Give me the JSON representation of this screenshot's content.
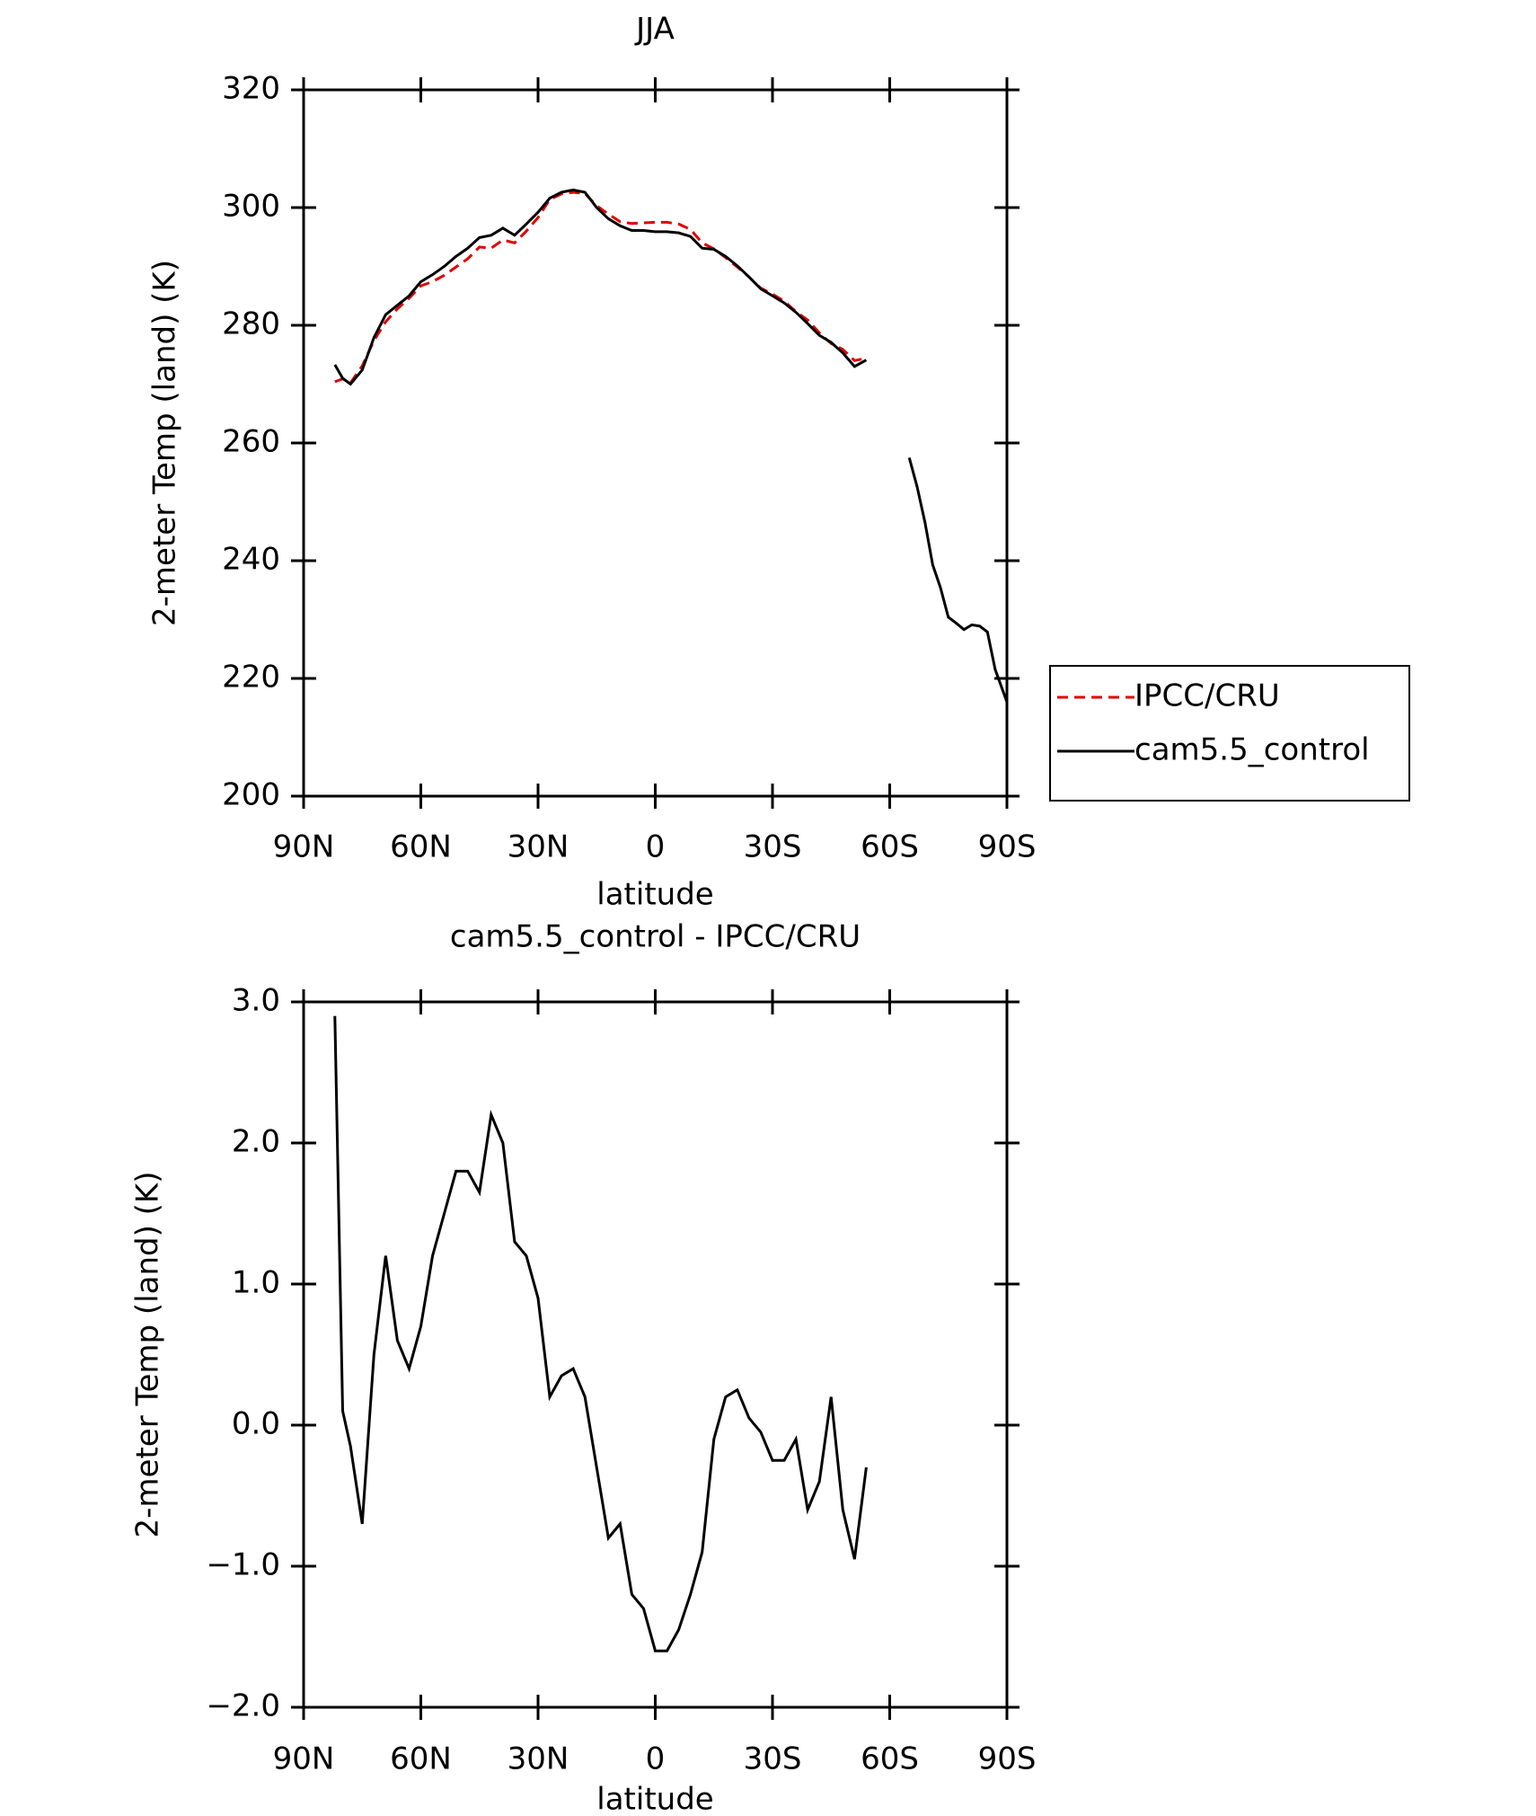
{
  "chart_data": [
    {
      "type": "line",
      "title": "JJA",
      "x_label": "latitude",
      "y_label": "2-meter Temp (land) (K)",
      "x": [
        82,
        80,
        78,
        75,
        72,
        69,
        66,
        63,
        60,
        57,
        54,
        51,
        48,
        45,
        42,
        39,
        36,
        33,
        30,
        27,
        24,
        21,
        18,
        15,
        12,
        9,
        6,
        3,
        0,
        -3,
        -6,
        -9,
        -12,
        -15,
        -18,
        -21,
        -24,
        -27,
        -30,
        -33,
        -36,
        -39,
        -42,
        -45,
        -48,
        -51,
        -54,
        -60,
        -65,
        -67,
        -69,
        -71,
        -73,
        -75,
        -77,
        -79,
        -81,
        -83,
        -85,
        -87,
        -90
      ],
      "xlim": [
        90,
        -90
      ],
      "xticks": [
        {
          "value": 90,
          "label": "90N"
        },
        {
          "value": 60,
          "label": "60N"
        },
        {
          "value": 30,
          "label": "30N"
        },
        0,
        {
          "value": -30,
          "label": "30S"
        },
        {
          "value": -60,
          "label": "60S"
        },
        {
          "value": -90,
          "label": "90S"
        }
      ],
      "ylim": [
        200,
        320
      ],
      "yticks": [
        200,
        220,
        240,
        260,
        280,
        300,
        320
      ],
      "legend": "right",
      "series": [
        {
          "name": "IPCC/CRU",
          "color": "#e00000",
          "dash": true,
          "values": [
            270.4,
            270.9,
            270.2,
            273.1,
            277.4,
            280.6,
            282.8,
            284.6,
            286.7,
            287.4,
            288.5,
            289.9,
            291.3,
            293.3,
            293.1,
            294.5,
            294.0,
            296.0,
            298.3,
            301.4,
            302.3,
            302.6,
            302.4,
            300.3,
            298.9,
            297.6,
            297.3,
            297.4,
            297.5,
            297.5,
            297.2,
            296.3,
            294.0,
            293.0,
            291.5,
            289.9,
            288.2,
            286.3,
            285.3,
            284.1,
            282.3,
            280.9,
            278.7,
            276.9,
            275.9,
            274.0,
            274.4,
            null,
            null,
            null,
            null,
            null,
            null,
            null,
            null,
            null,
            null,
            null,
            null,
            null,
            null
          ]
        },
        {
          "name": "cam5.5_control",
          "color": "#000000",
          "dash": false,
          "values": [
            273.3,
            271.0,
            270.0,
            272.4,
            277.9,
            281.8,
            283.4,
            285.0,
            287.4,
            288.6,
            290.0,
            291.7,
            293.1,
            294.9,
            295.3,
            296.5,
            295.3,
            297.2,
            299.2,
            301.6,
            302.6,
            303.0,
            302.6,
            300.0,
            298.1,
            296.9,
            296.1,
            296.1,
            295.9,
            295.9,
            295.7,
            295.1,
            293.1,
            292.9,
            291.7,
            290.1,
            288.2,
            286.2,
            285.0,
            283.8,
            282.2,
            280.3,
            278.3,
            277.1,
            275.3,
            273.0,
            274.1,
            null,
            257.5,
            252.6,
            246.6,
            239.3,
            235.4,
            230.4,
            229.4,
            228.3,
            229.1,
            228.9,
            227.9,
            221.5,
            216.0
          ]
        }
      ]
    },
    {
      "type": "line",
      "title": "cam5.5_control - IPCC/CRU",
      "x_label": "latitude",
      "y_label": "2-meter Temp (land) (K)",
      "x": [
        82,
        80,
        78,
        75,
        72,
        69,
        66,
        63,
        60,
        57,
        54,
        51,
        48,
        45,
        42,
        39,
        36,
        33,
        30,
        27,
        24,
        21,
        18,
        15,
        12,
        9,
        6,
        3,
        0,
        -3,
        -6,
        -9,
        -12,
        -15,
        -18,
        -21,
        -24,
        -27,
        -30,
        -33,
        -36,
        -39,
        -42,
        -45,
        -48,
        -51,
        -54
      ],
      "xlim": [
        90,
        -90
      ],
      "xticks": [
        {
          "value": 90,
          "label": "90N"
        },
        {
          "value": 60,
          "label": "60N"
        },
        {
          "value": 30,
          "label": "30N"
        },
        0,
        {
          "value": -30,
          "label": "30S"
        },
        {
          "value": -60,
          "label": "60S"
        },
        {
          "value": -90,
          "label": "90S"
        }
      ],
      "ylim": [
        -2,
        3
      ],
      "yticks": [
        {
          "value": -2,
          "label": "−2.0"
        },
        {
          "value": -1,
          "label": "−1.0"
        },
        {
          "value": 0,
          "label": "0.0"
        },
        {
          "value": 1,
          "label": "1.0"
        },
        {
          "value": 2,
          "label": "2.0"
        },
        {
          "value": 3,
          "label": "3.0"
        }
      ],
      "series": [
        {
          "color": "#000000",
          "dash": false,
          "values": [
            2.9,
            0.1,
            -0.15,
            -0.7,
            0.5,
            1.2,
            0.6,
            0.4,
            0.7,
            1.2,
            1.5,
            1.8,
            1.8,
            1.65,
            2.2,
            2.0,
            1.3,
            1.2,
            0.9,
            0.2,
            0.35,
            0.4,
            0.2,
            -0.3,
            -0.8,
            -0.7,
            -1.2,
            -1.3,
            -1.6,
            -1.6,
            -1.45,
            -1.2,
            -0.9,
            -0.1,
            0.2,
            0.25,
            0.05,
            -0.05,
            -0.25,
            -0.25,
            -0.1,
            -0.6,
            -0.4,
            0.2,
            -0.6,
            -0.95,
            -0.3
          ]
        }
      ]
    }
  ]
}
